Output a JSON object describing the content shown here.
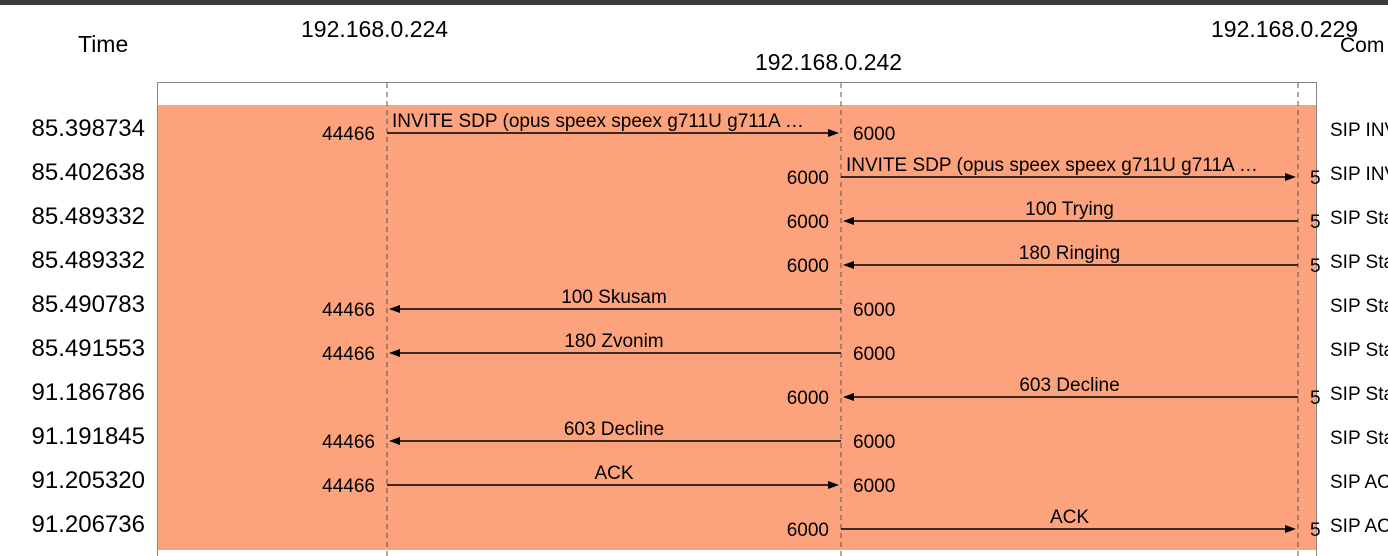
{
  "header": {
    "time_label": "Time",
    "comment_label": "Com"
  },
  "hosts": [
    "192.168.0.224",
    "192.168.0.242",
    "192.168.0.229"
  ],
  "rows": [
    {
      "time": "85.398734",
      "from": 0,
      "to": 1,
      "label": "INVITE SDP (opus speex speex g711U g711A …",
      "src_port": "44466",
      "dst_port": "6000",
      "comment": "SIP INV"
    },
    {
      "time": "85.402638",
      "from": 1,
      "to": 2,
      "label": "INVITE SDP (opus speex speex g711U g711A …",
      "src_port": "6000",
      "dst_port": "5",
      "comment": "SIP INV"
    },
    {
      "time": "85.489332",
      "from": 2,
      "to": 1,
      "label": "100 Trying",
      "src_port": "5",
      "dst_port": "6000",
      "comment": "SIP Sta"
    },
    {
      "time": "85.489332",
      "from": 2,
      "to": 1,
      "label": "180 Ringing",
      "src_port": "5",
      "dst_port": "6000",
      "comment": "SIP Sta"
    },
    {
      "time": "85.490783",
      "from": 1,
      "to": 0,
      "label": "100 Skusam",
      "src_port": "6000",
      "dst_port": "44466",
      "comment": "SIP Sta"
    },
    {
      "time": "85.491553",
      "from": 1,
      "to": 0,
      "label": "180 Zvonim",
      "src_port": "6000",
      "dst_port": "44466",
      "comment": "SIP Sta"
    },
    {
      "time": "91.186786",
      "from": 2,
      "to": 1,
      "label": "603 Decline",
      "src_port": "5",
      "dst_port": "6000",
      "comment": "SIP Sta"
    },
    {
      "time": "91.191845",
      "from": 1,
      "to": 0,
      "label": "603 Decline",
      "src_port": "6000",
      "dst_port": "44466",
      "comment": "SIP Sta"
    },
    {
      "time": "91.205320",
      "from": 0,
      "to": 1,
      "label": "ACK",
      "src_port": "44466",
      "dst_port": "6000",
      "comment": "SIP AC"
    },
    {
      "time": "91.206736",
      "from": 1,
      "to": 2,
      "label": "ACK",
      "src_port": "6000",
      "dst_port": "5",
      "comment": "SIP AC"
    }
  ],
  "colors": {
    "highlight": "#fca27c",
    "arrow": "#000000",
    "lifeline": "#555555"
  }
}
